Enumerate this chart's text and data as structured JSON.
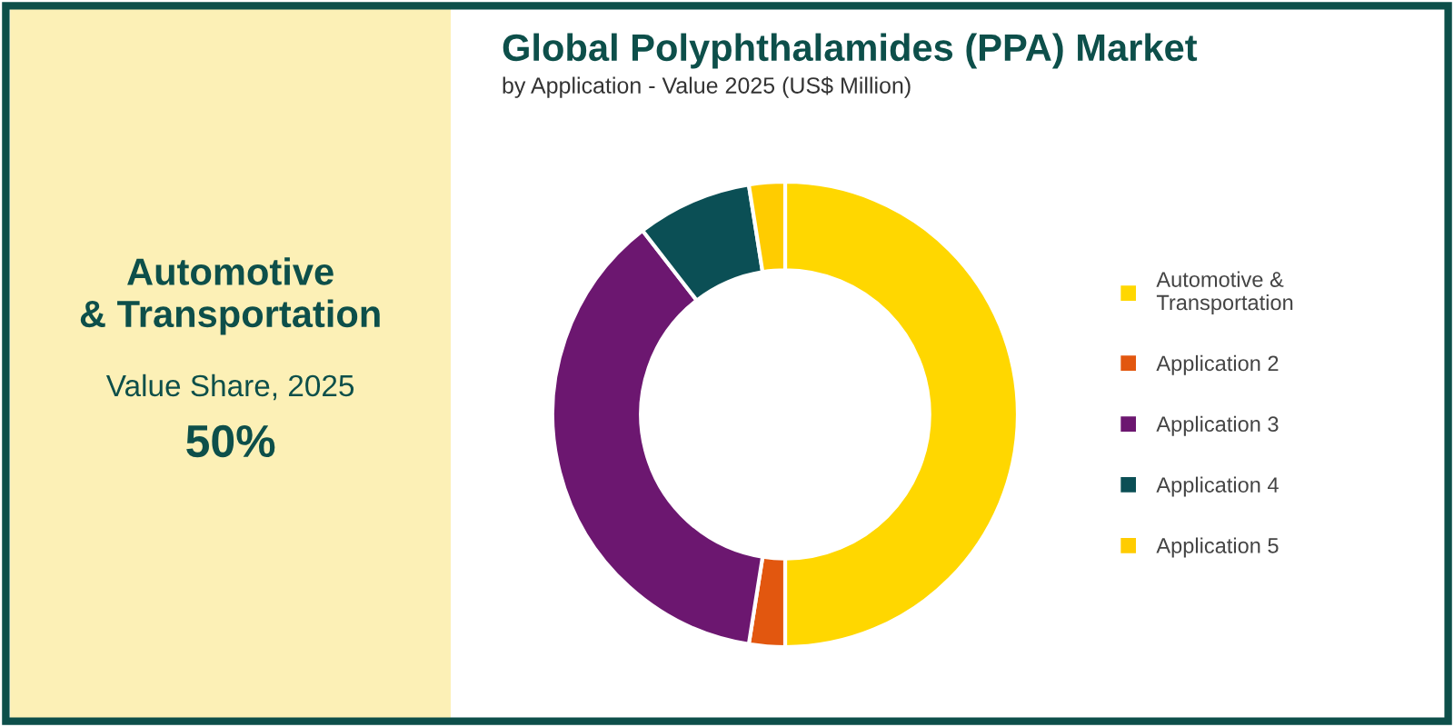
{
  "chart_data": [
    {
      "type": "other",
      "title": "Automotive\n& Transportation",
      "subtitle": "Value Share, 2025",
      "annotations": [
        "50%"
      ]
    },
    {
      "type": "donut",
      "title": "Global Polyphthalamides (PPA) Market",
      "subtitle": "by Application - Value 2025 (US$ Million)",
      "categories": [
        "Automotive &\nTransportation",
        "Application 2",
        "Application 3",
        "Application 4",
        "Application 5"
      ],
      "values": [
        50,
        2.5,
        37,
        8,
        2.5
      ],
      "colors": [
        "#ffd700",
        "#e2570f",
        "#6c1770",
        "#0b4f55",
        "#ffcc00"
      ],
      "legend": "right"
    }
  ]
}
